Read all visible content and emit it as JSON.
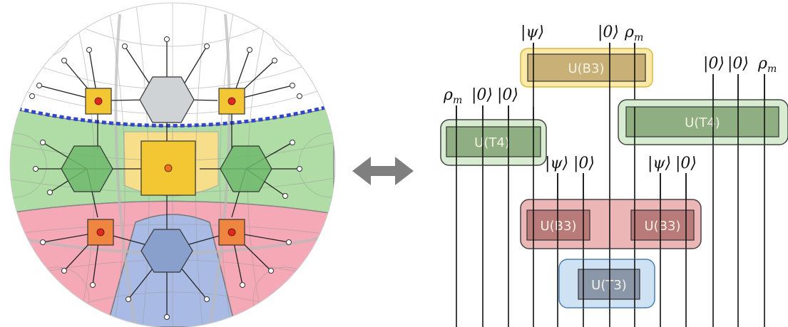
{
  "figure": {
    "arrow": "left-right-arrow-icon",
    "colors": {
      "yellow": "#f3c734",
      "green": "#9bd48e",
      "red": "#f39aaa",
      "blue": "#a9bbe4",
      "gray": "#cfd3d6",
      "tensor_orange": "#ee8540",
      "dashed_blue": "#3048c8"
    }
  },
  "circuit": {
    "gates": {
      "b3_top": "U(B3)",
      "t4_left": "U(T4)",
      "t4_right": "U(T4)",
      "b3_left": "U(B3)",
      "b3_right": "U(B3)",
      "t3": "U(T3)"
    },
    "labels": {
      "psi": "|ψ⟩",
      "zero": "|0⟩",
      "rho": "ρ",
      "rho_sub": "m"
    }
  }
}
